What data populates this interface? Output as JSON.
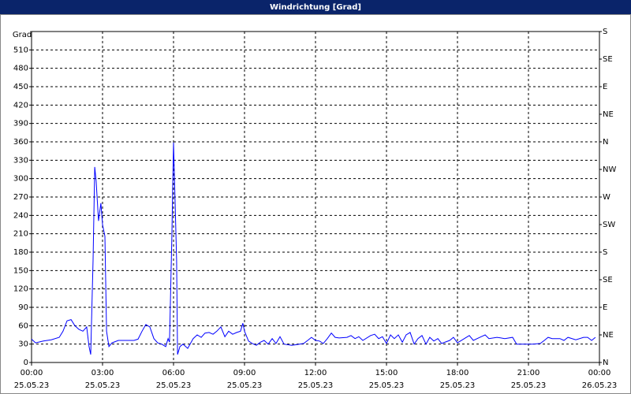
{
  "chart_data": {
    "type": "line",
    "title": "Windrichtung [Grad]",
    "ylabel": "Grad",
    "x": [
      0,
      0.17,
      0.5,
      0.83,
      1.17,
      1.33,
      1.5,
      1.67,
      1.83,
      2,
      2.17,
      2.33,
      2.43,
      2.5,
      2.6,
      2.67,
      2.73,
      2.83,
      2.93,
      3,
      3.1,
      3.17,
      3.27,
      3.4,
      3.67,
      4,
      4.33,
      4.5,
      4.67,
      4.83,
      5,
      5.17,
      5.33,
      5.5,
      5.67,
      5.77,
      5.83,
      5.93,
      6,
      6.07,
      6.13,
      6.17,
      6.27,
      6.4,
      6.6,
      6.83,
      7,
      7.17,
      7.33,
      7.5,
      7.67,
      7.83,
      8,
      8.17,
      8.33,
      8.5,
      8.67,
      8.83,
      8.93,
      9,
      9.17,
      9.33,
      9.5,
      9.67,
      9.83,
      10,
      10.17,
      10.33,
      10.5,
      10.67,
      11,
      11.33,
      11.5,
      11.67,
      11.83,
      12,
      12.17,
      12.33,
      12.5,
      12.67,
      12.83,
      13,
      13.33,
      13.5,
      13.67,
      13.83,
      14,
      14.33,
      14.5,
      14.67,
      14.83,
      15,
      15.17,
      15.33,
      15.5,
      15.67,
      15.83,
      16,
      16.17,
      16.33,
      16.5,
      16.67,
      16.83,
      17,
      17.17,
      17.33,
      17.67,
      17.83,
      18,
      18.33,
      18.5,
      18.67,
      19,
      19.17,
      19.33,
      19.67,
      20,
      20.33,
      20.5,
      20.83,
      21.17,
      21.5,
      21.67,
      21.83,
      22,
      22.33,
      22.5,
      22.67,
      23,
      23.33,
      23.5,
      23.67,
      23.83
    ],
    "series": [
      {
        "name": "Windrichtung",
        "color": "#0000ff",
        "values": [
          38,
          32,
          35,
          37,
          41,
          51,
          68,
          70,
          60,
          54,
          51,
          58,
          26,
          13,
          167,
          319,
          296,
          231,
          260,
          225,
          206,
          51,
          26,
          32,
          36,
          36,
          36,
          38,
          51,
          62,
          58,
          39,
          32,
          30,
          26,
          39,
          33,
          206,
          359,
          257,
          167,
          13,
          26,
          30,
          23,
          39,
          45,
          41,
          48,
          49,
          46,
          51,
          58,
          42,
          51,
          46,
          49,
          51,
          64,
          51,
          35,
          31,
          28,
          33,
          36,
          30,
          39,
          31,
          42,
          30,
          28,
          30,
          31,
          36,
          41,
          36,
          35,
          31,
          39,
          48,
          41,
          40,
          41,
          44,
          39,
          42,
          36,
          44,
          46,
          39,
          42,
          31,
          45,
          39,
          45,
          33,
          45,
          49,
          30,
          39,
          44,
          30,
          41,
          35,
          39,
          31,
          36,
          41,
          32,
          40,
          44,
          36,
          42,
          45,
          39,
          41,
          39,
          41,
          30,
          30,
          30,
          31,
          36,
          41,
          39,
          39,
          36,
          41,
          37,
          41,
          41,
          36,
          41
        ]
      }
    ],
    "xlim": [
      0,
      24
    ],
    "xticks": [
      {
        "value": 0,
        "label": "00:00"
      },
      {
        "value": 3,
        "label": "03:00"
      },
      {
        "value": 6,
        "label": "06:00"
      },
      {
        "value": 9,
        "label": "09:00"
      },
      {
        "value": 12,
        "label": "12:00"
      },
      {
        "value": 15,
        "label": "15:00"
      },
      {
        "value": 18,
        "label": "18:00"
      },
      {
        "value": 21,
        "label": "21:00"
      },
      {
        "value": 24,
        "label": "00:00"
      }
    ],
    "xtick_dates": [
      "25.05.23",
      "25.05.23",
      "25.05.23",
      "25.05.23",
      "25.05.23",
      "25.05.23",
      "25.05.23",
      "25.05.23",
      "26.05.23"
    ],
    "ylim": [
      0,
      540
    ],
    "yticks": [
      0,
      30,
      60,
      90,
      120,
      150,
      180,
      210,
      240,
      270,
      300,
      330,
      360,
      390,
      420,
      450,
      480,
      510
    ],
    "y2lim": [
      0,
      540
    ],
    "y2ticks": [
      {
        "value": 0,
        "label": "N"
      },
      {
        "value": 45,
        "label": "NE"
      },
      {
        "value": 90,
        "label": "E"
      },
      {
        "value": 135,
        "label": "SE"
      },
      {
        "value": 180,
        "label": "S"
      },
      {
        "value": 225,
        "label": "SW"
      },
      {
        "value": 270,
        "label": "W"
      },
      {
        "value": 315,
        "label": "NW"
      },
      {
        "value": 360,
        "label": "N"
      },
      {
        "value": 405,
        "label": "NE"
      },
      {
        "value": 450,
        "label": "E"
      },
      {
        "value": 495,
        "label": "SE"
      },
      {
        "value": 540,
        "label": "S"
      }
    ],
    "grid": true
  }
}
